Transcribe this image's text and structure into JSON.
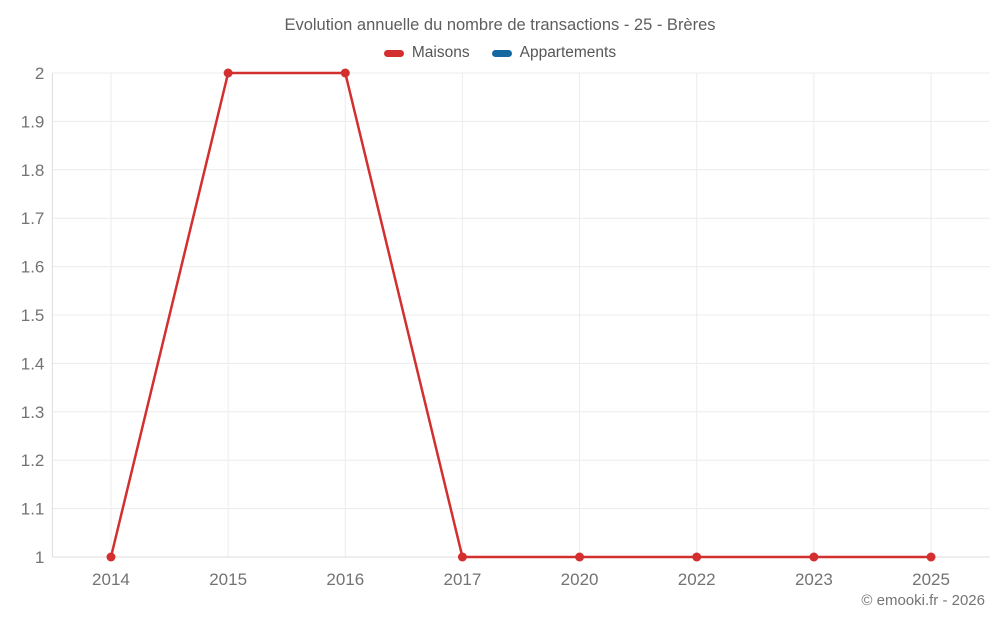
{
  "title": "Evolution annuelle du nombre de transactions - 25 - Brères",
  "legend": [
    {
      "label": "Maisons",
      "color": "#d32f2f"
    },
    {
      "label": "Appartements",
      "color": "#1467a0"
    }
  ],
  "footer": {
    "copyright": "© emooki.fr - 2026"
  },
  "colors": {
    "grid": "#ececec",
    "axis": "#dcdcdc",
    "tick_text": "#737373"
  },
  "chart_data": {
    "type": "line",
    "title": "Evolution annuelle du nombre de transactions - 25 - Brères",
    "categories": [
      "2014",
      "2015",
      "2016",
      "2017",
      "2020",
      "2022",
      "2023",
      "2025"
    ],
    "series": [
      {
        "name": "Maisons",
        "color": "#d32f2f",
        "values": [
          1,
          2,
          2,
          1,
          1,
          1,
          1,
          1
        ]
      },
      {
        "name": "Appartements",
        "color": "#1467a0",
        "values": []
      }
    ],
    "xlabel": "",
    "ylabel": "",
    "ylim": [
      1,
      2
    ],
    "yticks": [
      1,
      1.1,
      1.2,
      1.3,
      1.4,
      1.5,
      1.6,
      1.7,
      1.8,
      1.9,
      2
    ],
    "grid": true,
    "legend_position": "top",
    "marker": "circle"
  }
}
